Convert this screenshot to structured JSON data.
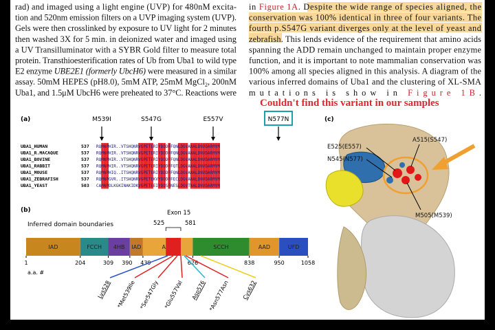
{
  "left_column": {
    "lines": [
      [
        "rad) and imaged using a light engine (UVP) for 480nM excita-"
      ],
      [
        "tion and 520nm emission filters on a UVP imaging system (UVP)."
      ],
      [
        "Gels were then crosslinked by exposure to UV light for 2 minutes"
      ],
      [
        "then washed 3X for 5 min. in deionized water and imaged using"
      ],
      [
        "a UV Transilluminator with a SYBR Gold filter to measure total"
      ],
      [
        "protein. Transthioesterification rates of Ub from Uba1 to wild type"
      ],
      [
        "E2 enzyme ",
        "UBE2E1 (formerly UbcH6)",
        " were measured in a similar"
      ],
      [
        "assay. 50mM HEPES (pH8.0), 5mM ATP, 25mM MgCl",
        "2",
        ", 200nM"
      ],
      [
        "Uba1, and 1.5μM UbcH6 were preheated to 37°C. Reactions were"
      ]
    ]
  },
  "right_column": {
    "lines": [
      [
        "in ",
        "Figure 1A",
        ". ",
        "Despite the wide range of species aligned, the"
      ],
      [
        "conservation was 100% identical in three of four variants. The"
      ],
      [
        "fourth p.S547G variant diverges only at the level of yeast and"
      ],
      [
        "zebrafish.",
        " This lends evidence of the requirement that amino acids"
      ],
      [
        "spanning the ADD remain unchanged to maintain proper enzyme"
      ],
      [
        "function, and it is important to note mammalian conservation was"
      ],
      [
        "100% among all species aligned in this analysis. A diagram of the"
      ],
      [
        "various inferred domains of Uba1 and the clustering of XL-SMA"
      ],
      [
        "mutations is show in ",
        "Figure 1B",
        "."
      ]
    ]
  },
  "figure": {
    "annotation": "Couldn't find this variant in our samples",
    "panel_a": {
      "label": "(a)",
      "mutations": [
        "M539I",
        "S547G",
        "E557V",
        "N577N"
      ],
      "alignment": [
        {
          "name": "UBA1_HUMAN",
          "start": 537,
          "sequence": "RQMNPHIR..VTSHQNRVGPETERIYDDDFFQNLDGVANALDNVDARMYM"
        },
        {
          "name": "UBA1_R.MACAQUE",
          "start": 537,
          "sequence": "RQMNPHIR..VTSHQNRVGPETERIYDDDFFQNLDGVANALDNVDARMYM"
        },
        {
          "name": "UBA1_BOVINE",
          "start": 537,
          "sequence": "RQMNPHIR..VTSHQNRVGPETERIYDDDFFQNLDGVANALDNVDARMYM"
        },
        {
          "name": "UBA1_RABBIT",
          "start": 537,
          "sequence": "RQMNPHIR..VTSHQNRVGPETERIYDDDFFQTLDGVANALDNVDARMYM"
        },
        {
          "name": "UBA1_MOUSE",
          "start": 537,
          "sequence": "RQMNPHIQ..ITSHQNRVGPETERIYDDDFFQNLDGVANALDNVDARMYM"
        },
        {
          "name": "UBA1_ZEBRAFISH",
          "start": 537,
          "sequence": "RQMNPGVR..ITSHQNRVGPETEKVYDDDFFECLDGVANALDNVDARMYM"
        },
        {
          "name": "UBA1_YEAST",
          "start": 503,
          "sequence": "CAMNPDLKGKINAKIDKVGPETEEIYDDSFNESLDGVTNALDNVDARMYM"
        }
      ]
    },
    "panel_b": {
      "label": "(b)",
      "subtitle": "Inferred domain boundaries",
      "exon": {
        "title": "Exon 15",
        "start": 525,
        "end": 581,
        "color": "#e02020"
      },
      "boundaries": [
        1,
        204,
        309,
        390,
        439,
        626,
        838,
        950,
        1058
      ],
      "axis_label": "a.a. #",
      "domains": [
        {
          "label": "IAD",
          "color": "#c8861e"
        },
        {
          "label": "FCCH",
          "color": "#2a8a8a"
        },
        {
          "label": "4HB",
          "color": "#6b3fa0"
        },
        {
          "label": "IAD",
          "color": "#c07a2a"
        },
        {
          "label": "AAD",
          "color": "#e8a53a"
        },
        {
          "label": "SCCH",
          "color": "#2e8b2e"
        },
        {
          "label": "AAD",
          "color": "#e0962a"
        },
        {
          "label": "UFD",
          "color": "#2a4fc0"
        }
      ],
      "variants": [
        "Lys528",
        "*Met539Ile",
        "*Ser547Gly",
        "*Glu557Val",
        "Asp576",
        "*Asn577Asn",
        "Cys632"
      ]
    },
    "panel_c": {
      "label": "(c)",
      "residues": [
        "A515(S547)",
        "E525(E557)",
        "N545(N577)",
        "M505(M539)"
      ]
    }
  }
}
